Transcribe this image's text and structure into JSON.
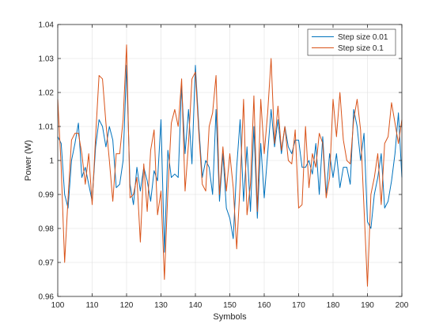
{
  "chart_data": {
    "type": "line",
    "title": "",
    "xlabel": "Symbols",
    "ylabel": "Power (W)",
    "xlim": [
      100,
      200
    ],
    "ylim": [
      0.96,
      1.04
    ],
    "xticks": [
      100,
      110,
      120,
      130,
      140,
      150,
      160,
      170,
      180,
      190,
      200
    ],
    "xtick_labels": [
      "100",
      "110",
      "120",
      "130",
      "140",
      "150",
      "160",
      "170",
      "180",
      "190",
      "200"
    ],
    "yticks": [
      0.96,
      0.97,
      0.98,
      0.99,
      1.0,
      1.01,
      1.02,
      1.03,
      1.04
    ],
    "ytick_labels": [
      "0.96",
      "0.97",
      "0.98",
      "0.99",
      "1",
      "1.01",
      "1.02",
      "1.03",
      "1.04"
    ],
    "grid": true,
    "legend_position": "top-right",
    "x_start": 100,
    "x_step": 1,
    "series": [
      {
        "name": "Step size 0.01",
        "color": "#0072BD",
        "values": [
          1.007,
          1.005,
          0.99,
          0.986,
          1.0,
          1.005,
          1.011,
          0.995,
          0.998,
          0.993,
          0.988,
          1.004,
          1.012,
          1.01,
          1.004,
          1.01,
          1.006,
          0.992,
          0.993,
          1.0,
          1.028,
          0.993,
          0.987,
          0.998,
          0.991,
          0.998,
          0.994,
          0.988,
          0.997,
          0.994,
          1.012,
          0.973,
          1.003,
          0.995,
          0.996,
          0.995,
          1.022,
          1.002,
          1.015,
          0.999,
          1.028,
          1.01,
          0.995,
          1.0,
          0.998,
          0.99,
          1.015,
          0.988,
          1.002,
          0.986,
          0.983,
          0.977,
          0.998,
          1.012,
          0.988,
          1.004,
          0.985,
          1.01,
          0.983,
          1.005,
          0.989,
          1.002,
          1.015,
          1.004,
          1.012,
          1.002,
          1.01,
          1.004,
          1.002,
          1.006,
          1.006,
          0.998,
          0.998,
          1.0,
          0.996,
          1.005,
          0.99,
          1.007,
          0.99,
          1.002,
          0.995,
          1.002,
          0.992,
          0.998,
          0.998,
          0.993,
          1.015,
          1.01,
          1.0,
          1.008,
          0.982,
          0.98,
          0.99,
          0.995,
          1.002,
          0.986,
          0.988,
          0.994,
          1.002,
          1.014,
          0.995
        ]
      },
      {
        "name": "Step size 0.1",
        "color": "#D95319",
        "values": [
          1.018,
          0.998,
          0.97,
          0.989,
          1.006,
          1.008,
          1.008,
          1.002,
          0.993,
          1.002,
          0.987,
          1.007,
          1.025,
          1.024,
          1.011,
          1.0,
          0.988,
          1.002,
          1.002,
          1.012,
          1.034,
          0.989,
          0.99,
          0.995,
          0.976,
          0.999,
          0.985,
          1.003,
          1.009,
          0.984,
          0.991,
          0.965,
          0.991,
          1.011,
          1.015,
          1.01,
          1.024,
          0.991,
          1.005,
          1.024,
          1.026,
          1.008,
          0.993,
          0.991,
          1.01,
          1.014,
          1.025,
          0.99,
          1.004,
          0.991,
          1.002,
          0.992,
          0.974,
          0.993,
          1.018,
          0.984,
          0.993,
          1.019,
          0.985,
          1.018,
          1.002,
          1.014,
          1.03,
          1.005,
          1.016,
          1.003,
          1.01,
          1.0,
          0.999,
          1.009,
          0.986,
          0.987,
          1.01,
          0.992,
          1.002,
          0.998,
          1.008,
          1.005,
          0.989,
          0.995,
          1.018,
          1.007,
          1.02,
          1.006,
          1.0,
          0.999,
          1.012,
          1.018,
          1.009,
          0.986,
          0.963,
          0.99,
          0.995,
          1.002,
          0.987,
          1.005,
          1.007,
          1.017,
          1.011,
          1.005,
          1.012
        ]
      }
    ]
  }
}
